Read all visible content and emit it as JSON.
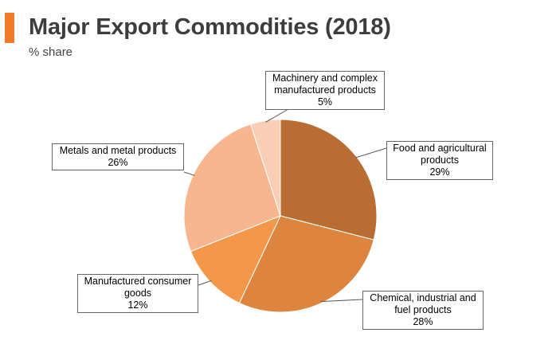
{
  "header": {
    "title": "Major Export Commodities (2018)",
    "subtitle": "% share"
  },
  "colors": {
    "accent": "#f07c28"
  },
  "chart_data": {
    "type": "pie",
    "title": "Major Export Commodities (2018)",
    "subtitle": "% share",
    "start": "12 o'clock, clockwise",
    "slices": [
      {
        "name": "Food and agricultural products",
        "label_lines": [
          "Food and agricultural",
          "products"
        ],
        "value": 29,
        "value_label": "29%",
        "color": "#b96d33"
      },
      {
        "name": "Chemical, industrial and fuel products",
        "label_lines": [
          "Chemical, industrial and",
          "fuel products"
        ],
        "value": 28,
        "value_label": "28%",
        "color": "#dd843e"
      },
      {
        "name": "Manufactured consumer goods",
        "label_lines": [
          "Manufactured consumer",
          "goods"
        ],
        "value": 12,
        "value_label": "12%",
        "color": "#f49749"
      },
      {
        "name": "Metals and metal products",
        "label_lines": [
          "Metals and metal products"
        ],
        "value": 26,
        "value_label": "26%",
        "color": "#f7b690"
      },
      {
        "name": "Machinery and complex manufactured products",
        "label_lines": [
          "Machinery and complex",
          "manufactured products"
        ],
        "value": 5,
        "value_label": "5%",
        "color": "#facdb6"
      }
    ]
  }
}
